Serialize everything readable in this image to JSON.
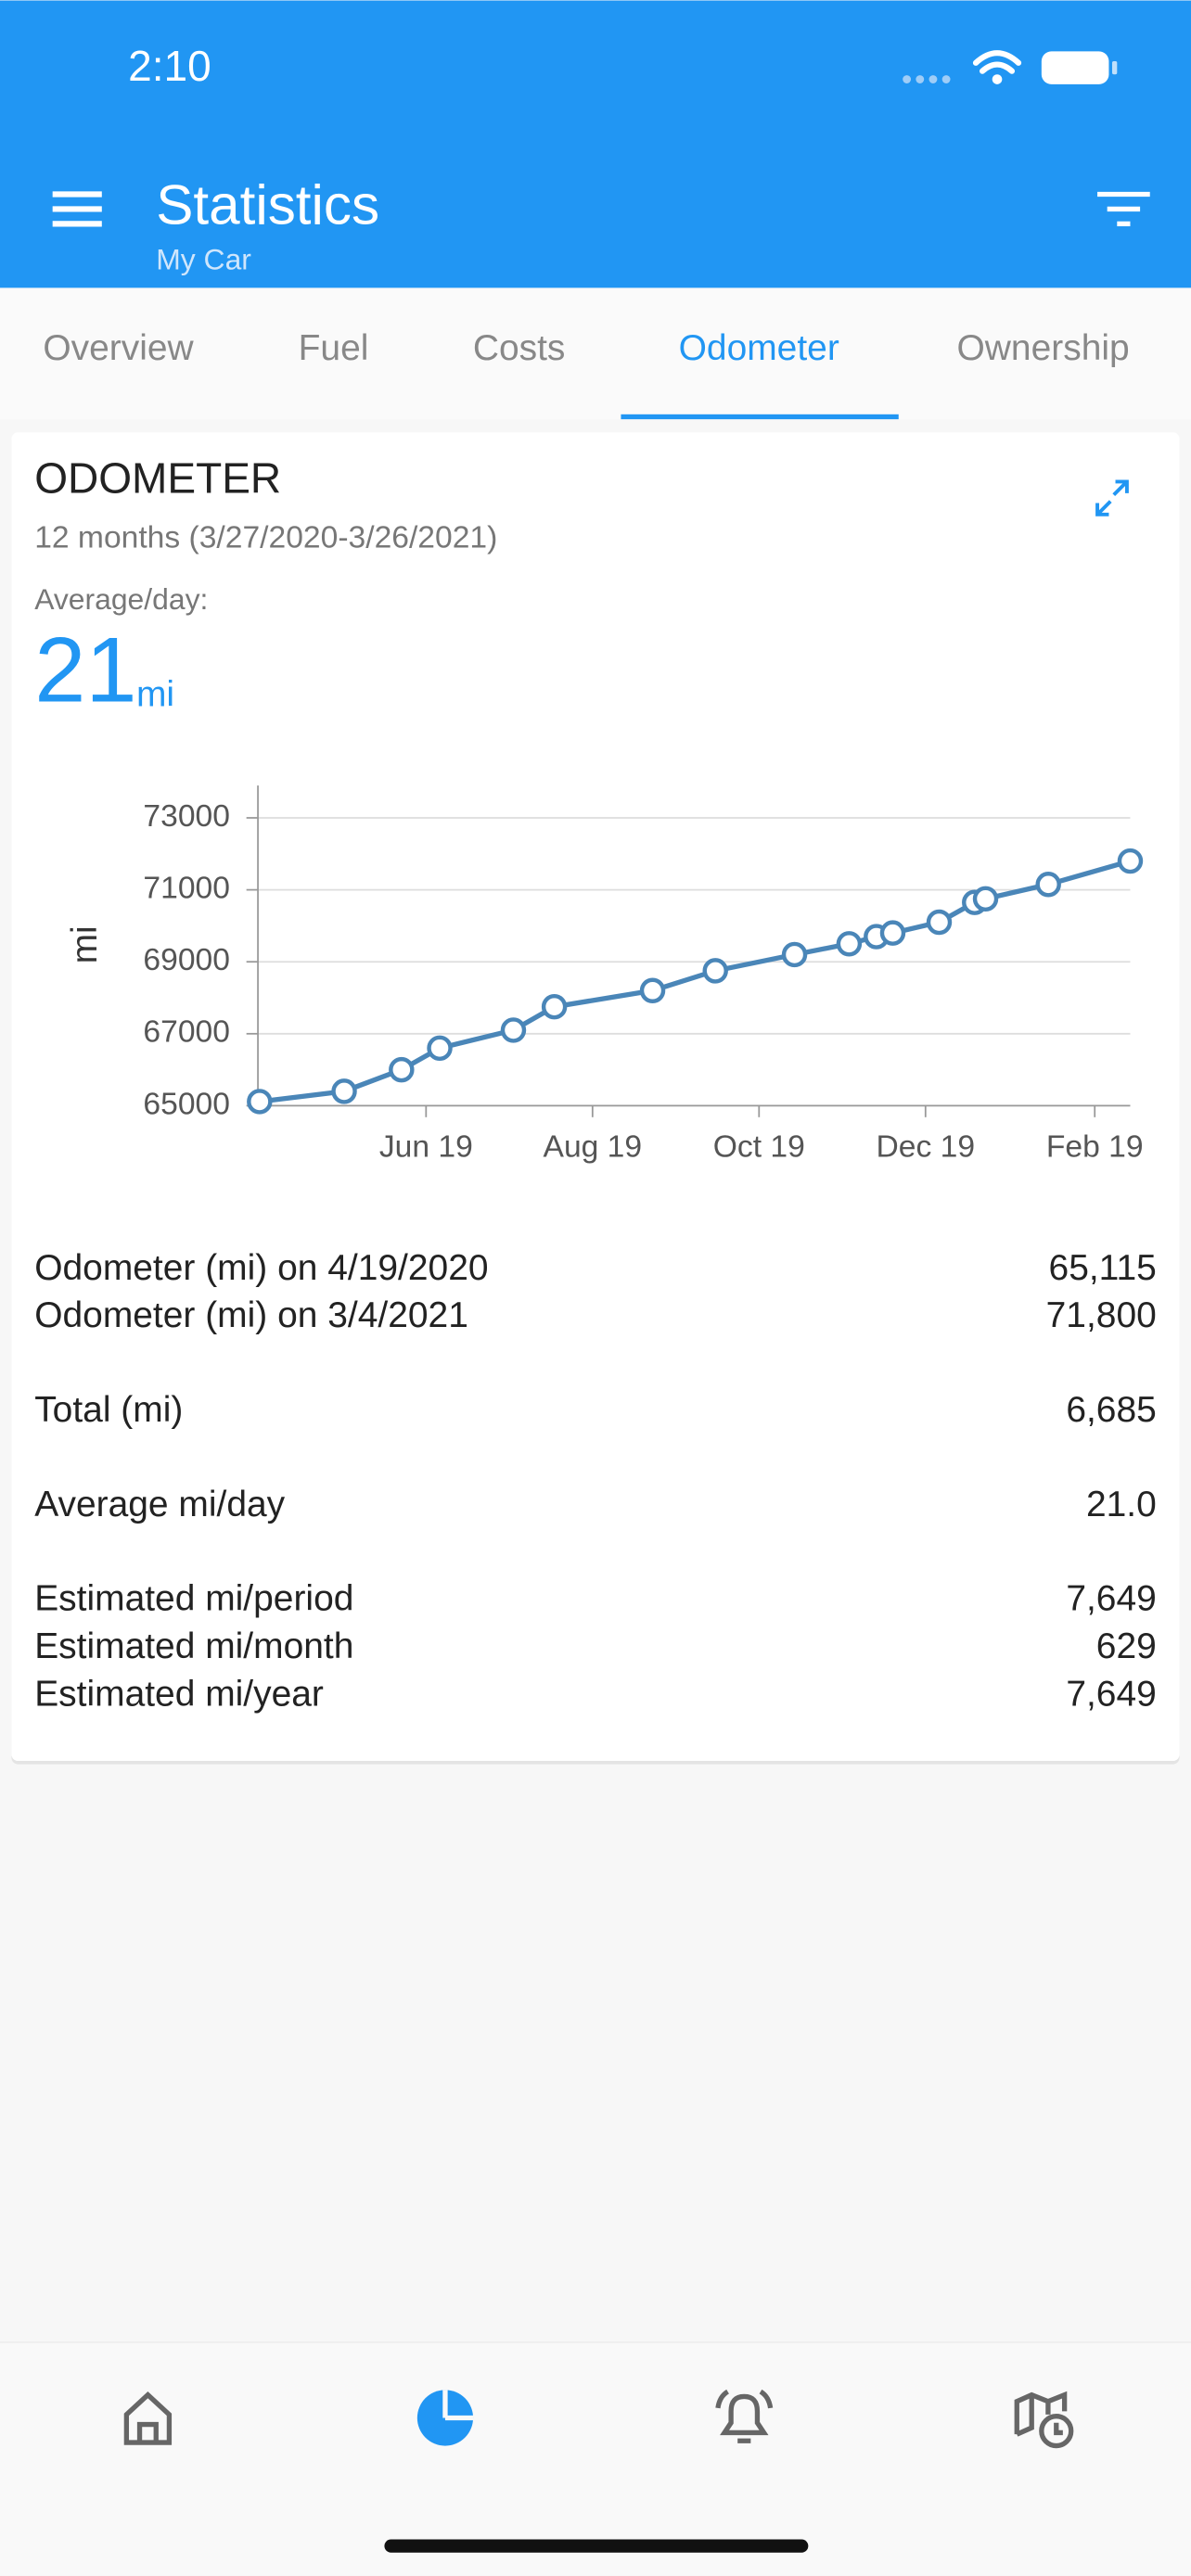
{
  "status_bar": {
    "time": "2:10"
  },
  "app_bar": {
    "title": "Statistics",
    "subtitle": "My Car"
  },
  "tabs": {
    "items": [
      "Overview",
      "Fuel",
      "Costs",
      "Odometer",
      "Ownership"
    ],
    "active": 3
  },
  "card": {
    "title": "ODOMETER",
    "period": "12 months (3/27/2020-3/26/2021)",
    "average_label": "Average/day:",
    "average_value": "21",
    "average_unit": "mi",
    "stats": [
      [
        {
          "label": "Odometer (mi) on 4/19/2020",
          "value": "65,115"
        },
        {
          "label": "Odometer (mi) on 3/4/2021",
          "value": "71,800"
        }
      ],
      [
        {
          "label": "Total (mi)",
          "value": "6,685"
        }
      ],
      [
        {
          "label": "Average mi/day",
          "value": "21.0"
        }
      ],
      [
        {
          "label": "Estimated mi/period",
          "value": "7,649"
        },
        {
          "label": "Estimated mi/month",
          "value": "629"
        },
        {
          "label": "Estimated mi/year",
          "value": "7,649"
        }
      ]
    ]
  },
  "chart_data": {
    "type": "line",
    "y_label": "mi",
    "x": [
      0,
      31,
      52,
      66,
      93,
      108,
      144,
      167,
      196,
      216,
      226,
      232,
      249,
      262,
      266,
      289,
      319
    ],
    "series": [
      {
        "name": "Odometer",
        "color": "#4a86b8",
        "values": [
          65115,
          65400,
          66000,
          66600,
          67100,
          67750,
          68200,
          68750,
          69200,
          69500,
          69700,
          69800,
          70100,
          70650,
          70750,
          71150,
          71800
        ]
      }
    ],
    "xlim": [
      0,
      319
    ],
    "xticks": [
      {
        "value": 61,
        "label": "Jun 19"
      },
      {
        "value": 122,
        "label": "Aug 19"
      },
      {
        "value": 183,
        "label": "Oct 19"
      },
      {
        "value": 244,
        "label": "Dec 19"
      },
      {
        "value": 306,
        "label": "Feb 19"
      }
    ],
    "ylim": [
      65000,
      73900
    ],
    "yticks": [
      65000,
      67000,
      69000,
      71000,
      73000
    ],
    "grid": true
  }
}
